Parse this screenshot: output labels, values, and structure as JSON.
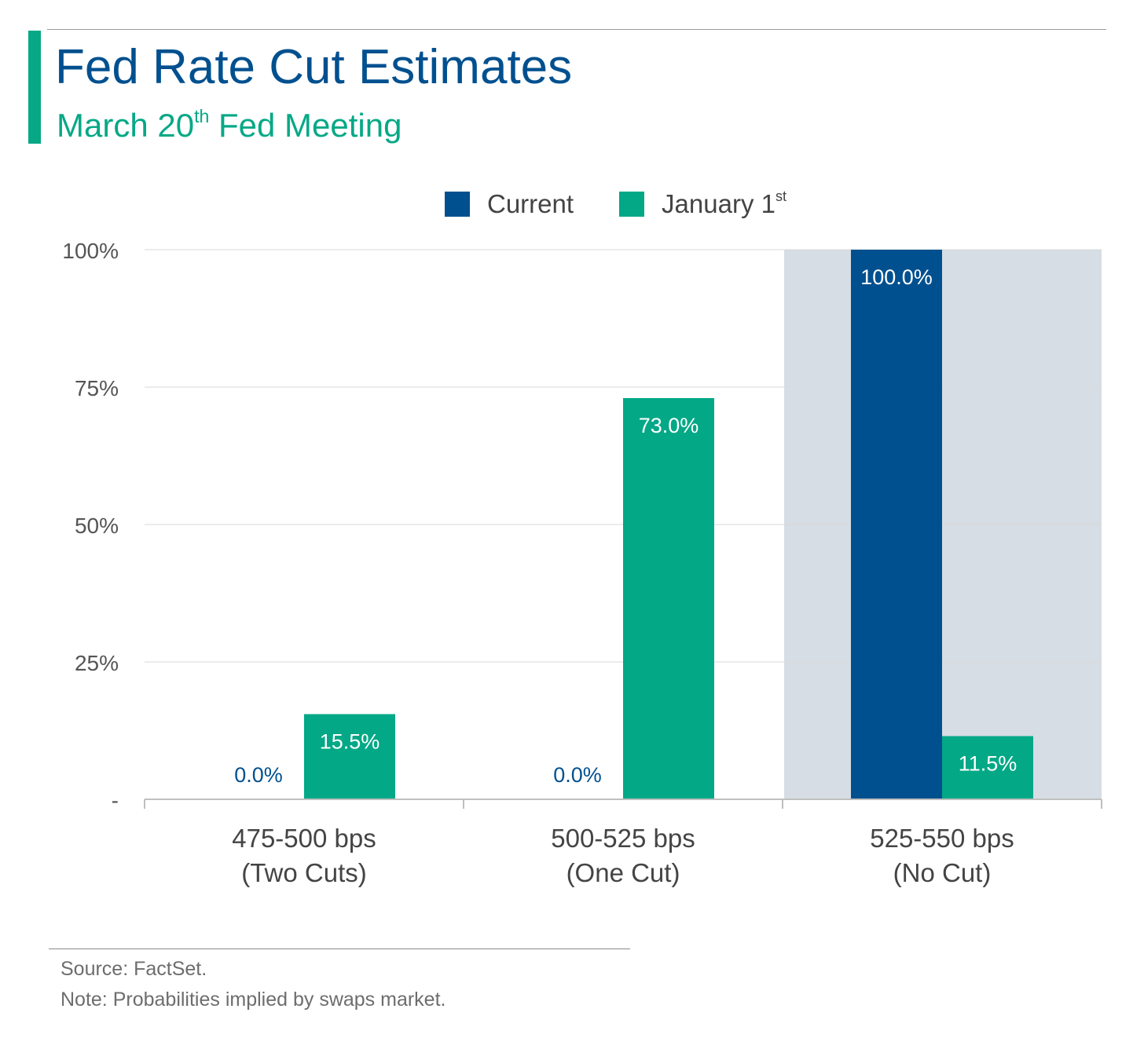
{
  "header": {
    "title": "Fed Rate Cut Estimates",
    "subtitle_main": "March 20",
    "subtitle_sup": "th",
    "subtitle_rest": " Fed Meeting"
  },
  "legend": {
    "current_label": "Current",
    "january_label": "January 1",
    "january_sup": "st"
  },
  "colors": {
    "current": "#00508f",
    "january": "#03a886",
    "title": "#00508f",
    "accent": "#06a886",
    "highlight_band": "#d7dde5"
  },
  "chart_data": {
    "type": "bar",
    "categories": [
      [
        "475-500 bps",
        "(Two Cuts)"
      ],
      [
        "500-525 bps",
        "(One Cut)"
      ],
      [
        "525-550 bps",
        "(No Cut)"
      ]
    ],
    "series": [
      {
        "name": "Current",
        "values": [
          0.0,
          0.0,
          100.0
        ],
        "labels": [
          "0.0%",
          "0.0%",
          "100.0%"
        ]
      },
      {
        "name": "January 1st",
        "values": [
          15.5,
          73.0,
          11.5
        ],
        "labels": [
          "15.5%",
          "73.0%",
          "11.5%"
        ]
      }
    ],
    "highlighted_category": 2,
    "ylim": [
      0,
      100
    ],
    "yticks": [
      0,
      25,
      50,
      75,
      100
    ],
    "ytick_labels": [
      "-",
      "25%",
      "50%",
      "75%",
      "100%"
    ],
    "grid": true,
    "legend_position": "top-center"
  },
  "footer": {
    "source": "Source: FactSet.",
    "note": "Note: Probabilities implied by swaps market."
  }
}
